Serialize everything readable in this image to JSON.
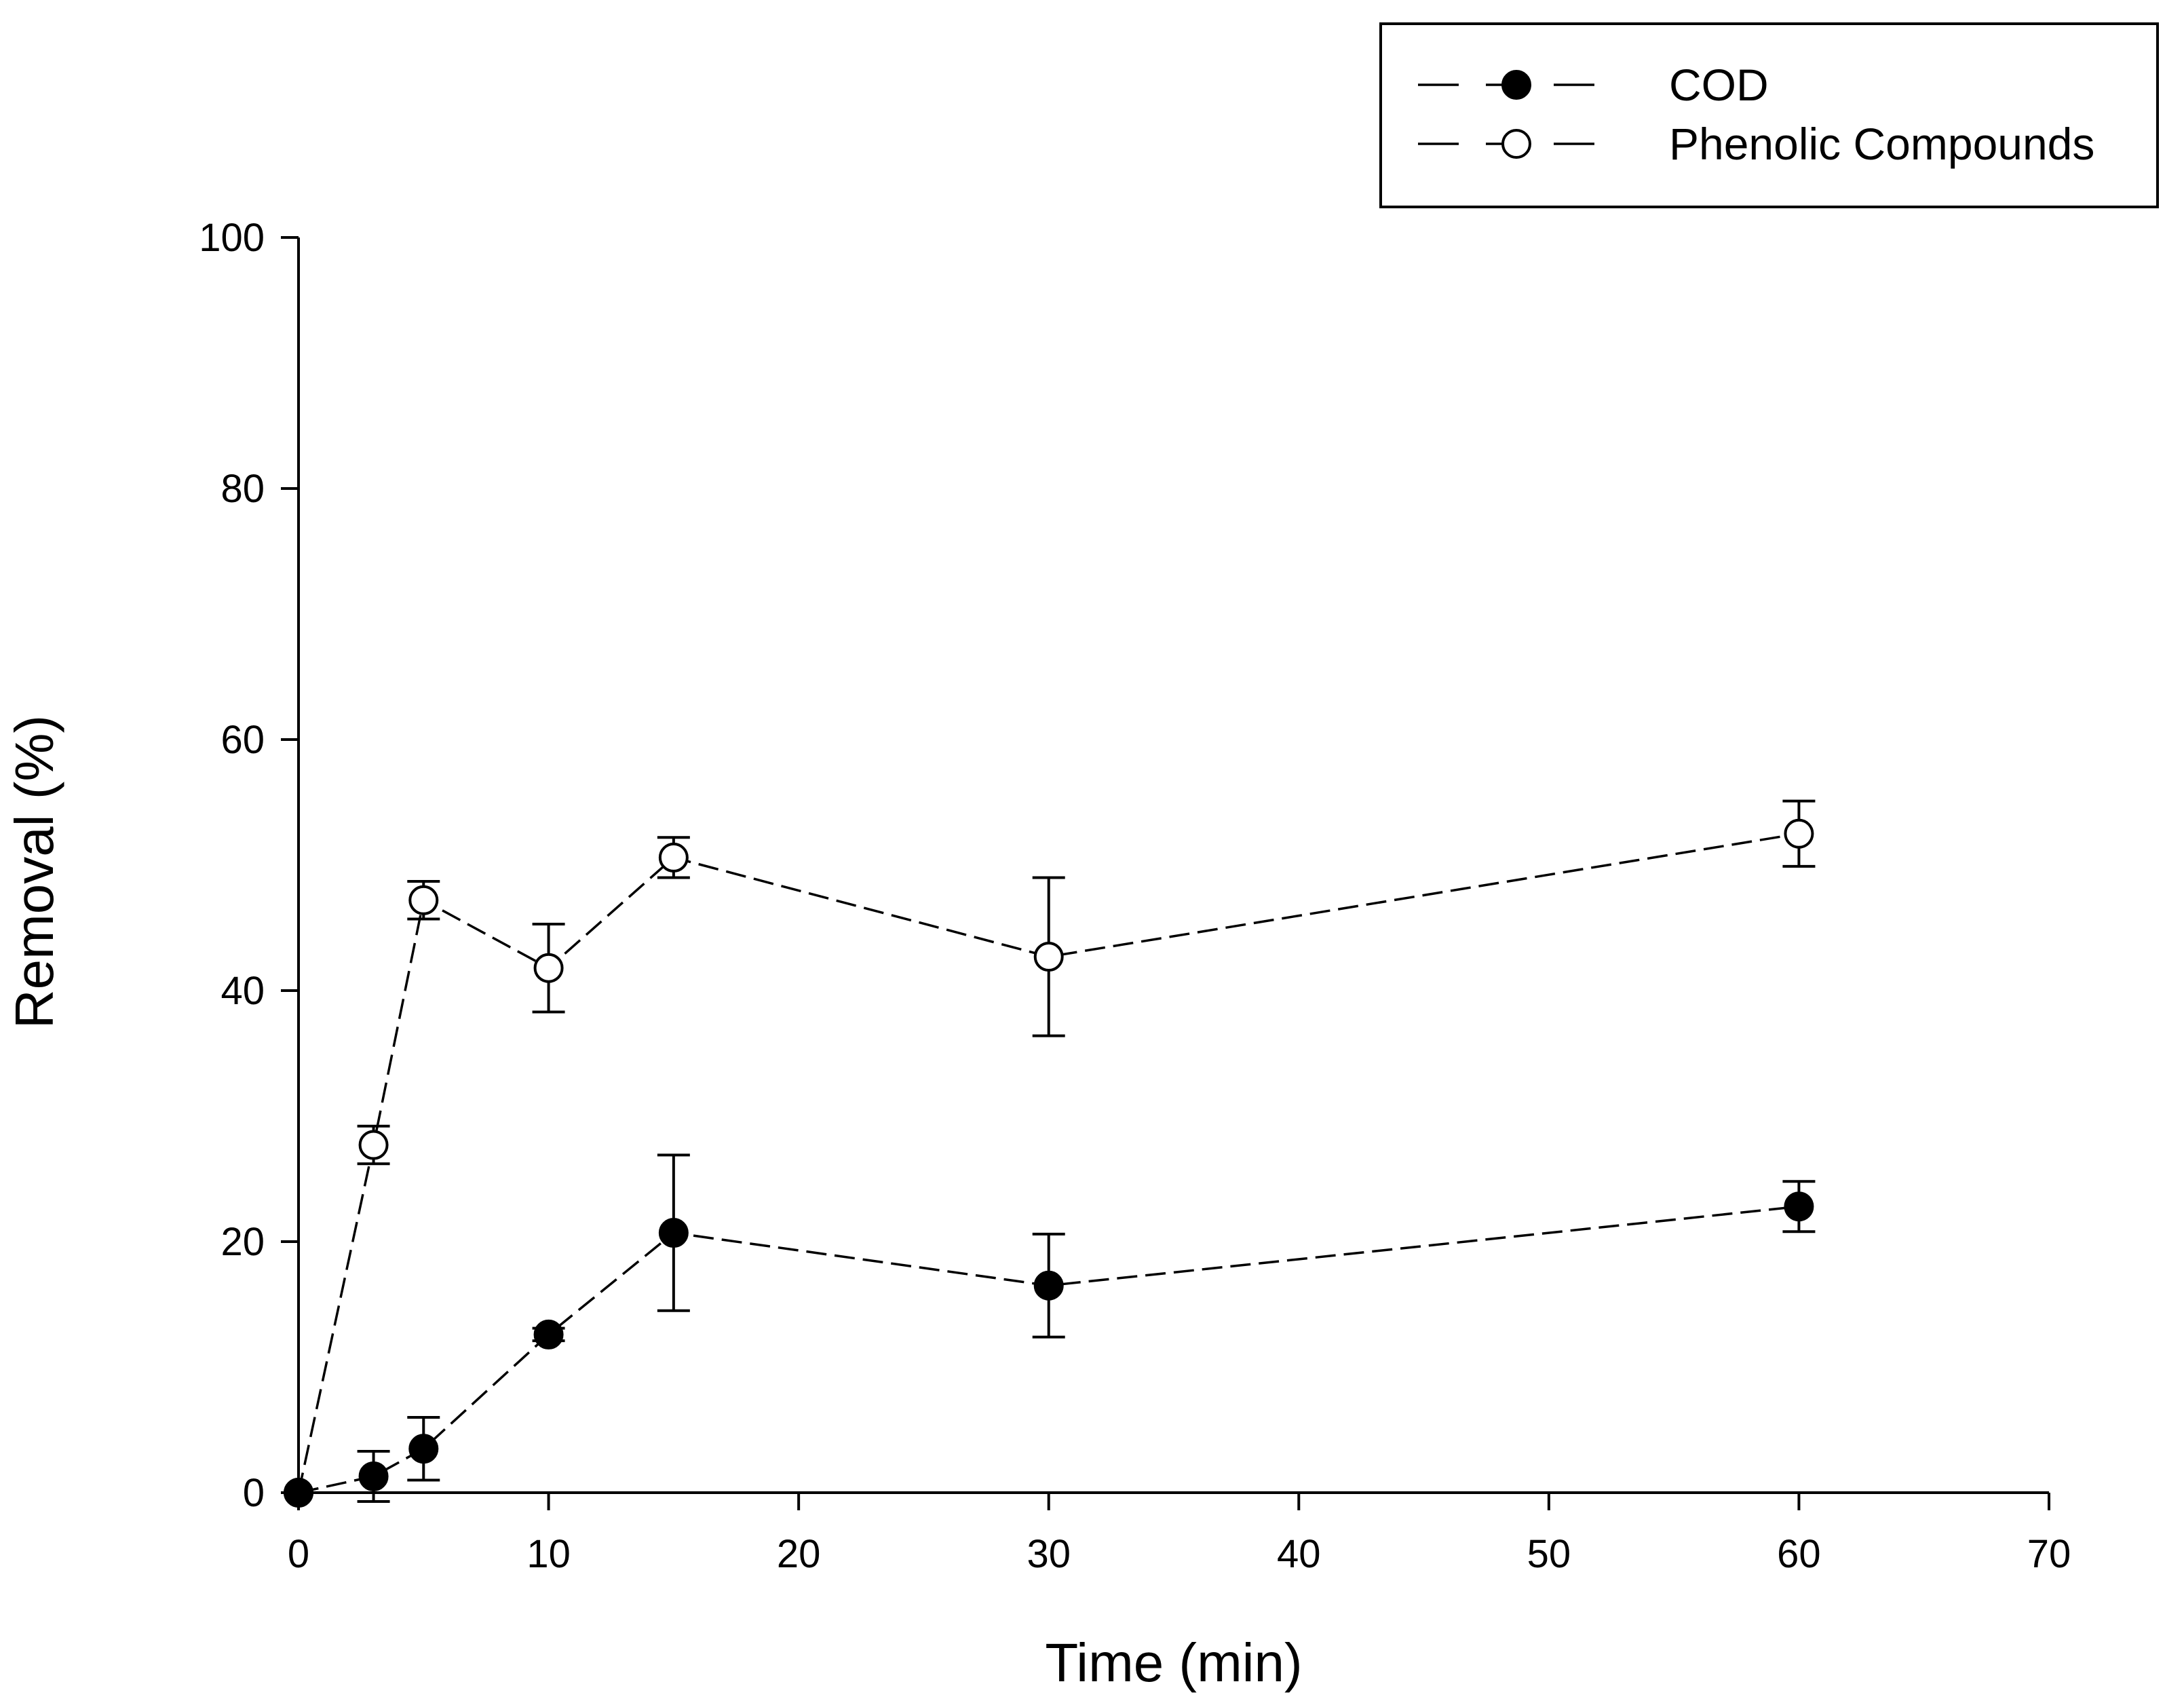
{
  "chart_data": {
    "type": "line",
    "xlabel": "Time (min)",
    "ylabel": "Removal (%)",
    "xlim": [
      0,
      70
    ],
    "ylim": [
      0,
      100
    ],
    "xticks": [
      0,
      10,
      20,
      30,
      40,
      50,
      60,
      70
    ],
    "yticks": [
      0,
      20,
      40,
      60,
      80,
      100
    ],
    "grid": false,
    "legend_position": "top-right",
    "series": [
      {
        "name": "COD",
        "marker": "filled-circle",
        "line_style": "dashed",
        "x": [
          0,
          3,
          5,
          10,
          15,
          30,
          60
        ],
        "y": [
          0,
          1.3,
          3.5,
          12.6,
          20.7,
          16.5,
          22.8
        ],
        "error": [
          0,
          2.0,
          2.5,
          0.5,
          6.2,
          4.1,
          2.0
        ]
      },
      {
        "name": "Phenolic Compounds",
        "marker": "open-circle",
        "line_style": "dashed",
        "x": [
          0,
          3,
          5,
          10,
          15,
          30,
          60
        ],
        "y": [
          0,
          27.7,
          47.2,
          41.8,
          50.6,
          42.7,
          52.5
        ],
        "error": [
          0,
          1.5,
          1.5,
          3.5,
          1.6,
          6.3,
          2.6
        ]
      }
    ],
    "colors": {
      "axis": "#000000",
      "line": "#000000",
      "marker_fill_open": "#ffffff",
      "marker_fill_filled": "#000000"
    }
  }
}
